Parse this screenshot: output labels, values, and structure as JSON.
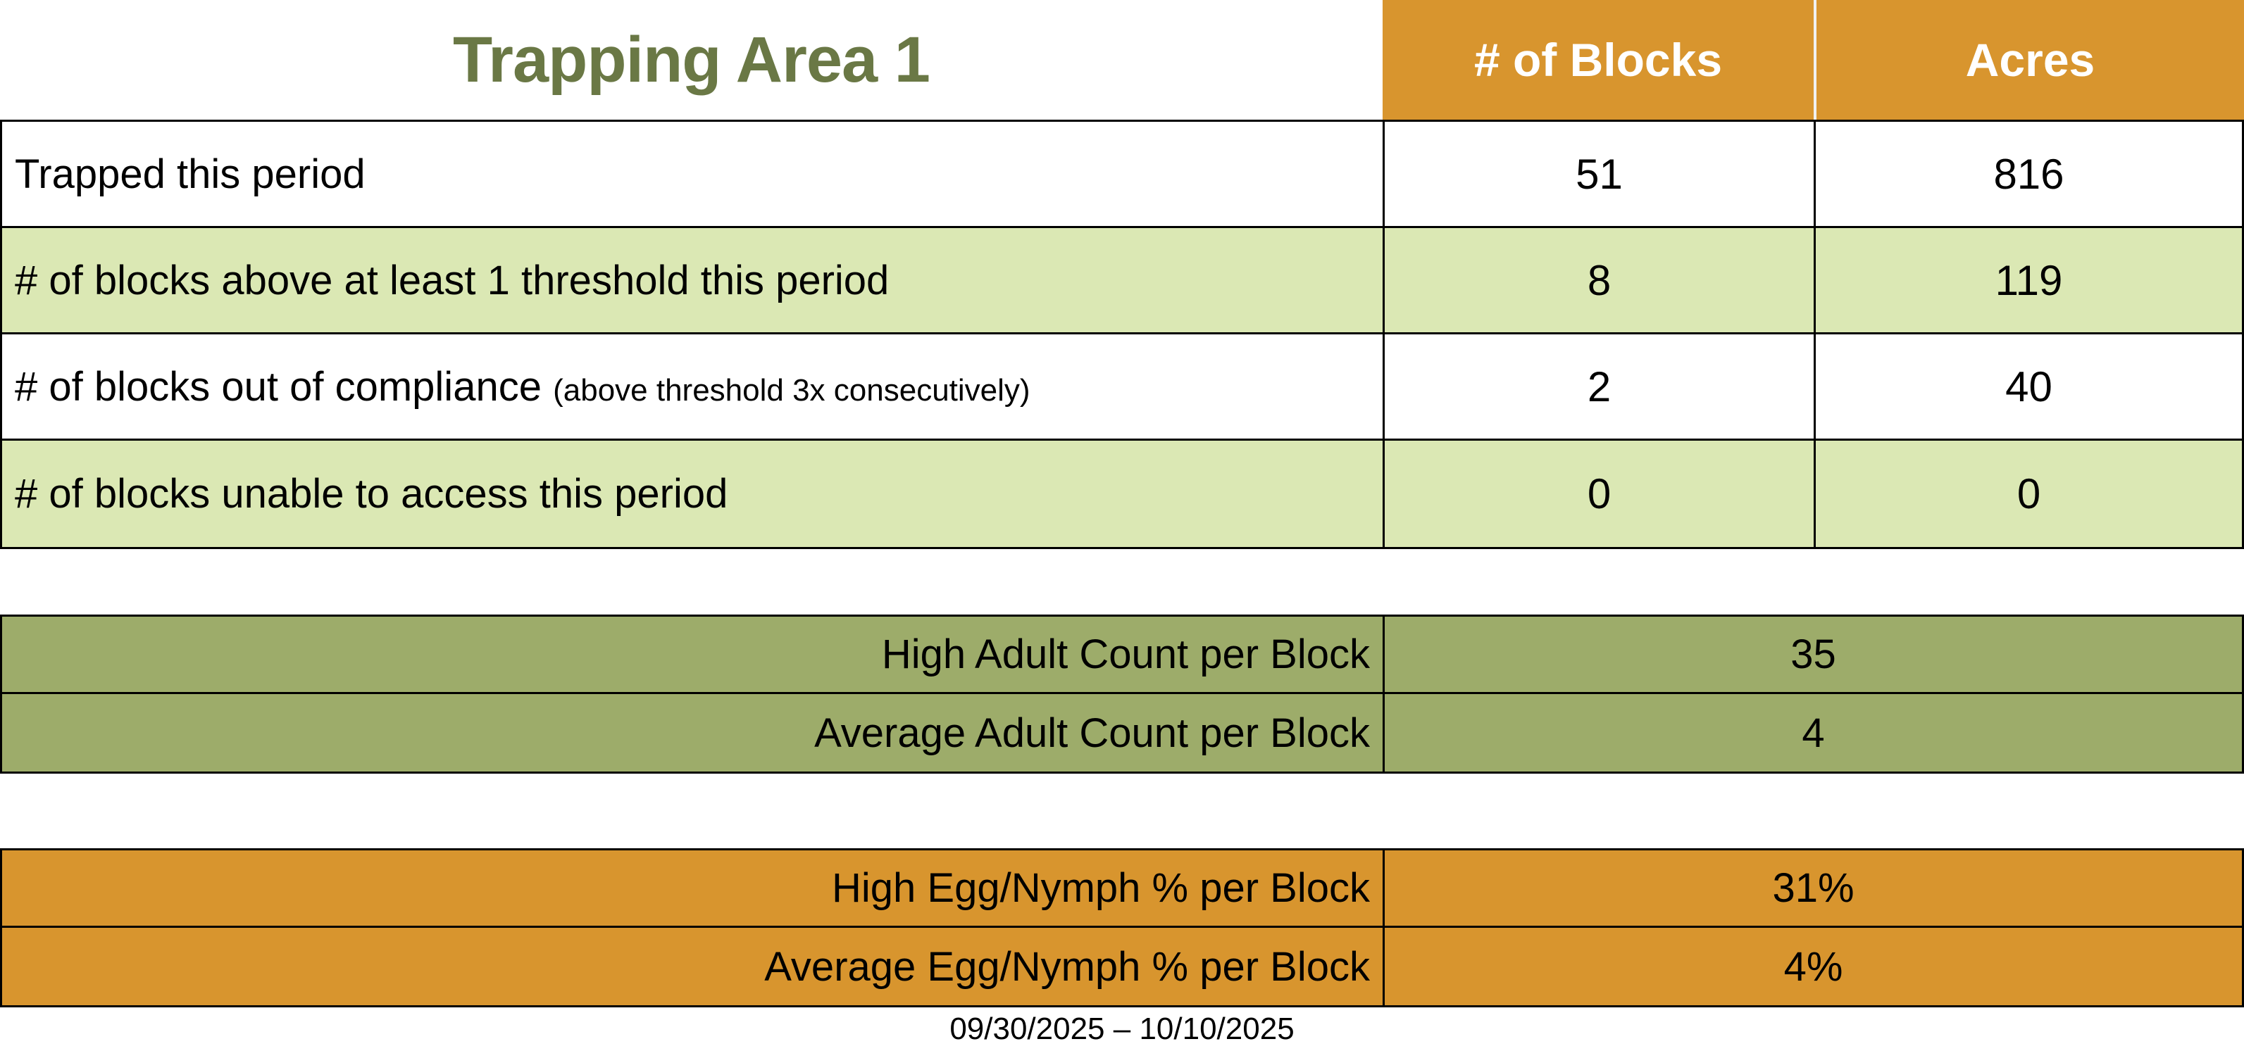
{
  "page": {
    "title": "Trapping Area 1",
    "date_range": "09/30/2025 – 10/10/2025"
  },
  "colors": {
    "title_green": "#6a7845",
    "header_orange": "#d8952e",
    "row_light_green": "#dbe8b4",
    "olive_green": "#9dac6a",
    "border_black": "#000000",
    "header_text_white": "#ffffff"
  },
  "summary_table": {
    "columns": [
      "# of Blocks",
      "Acres"
    ],
    "rows": [
      {
        "label": "Trapped this period",
        "note": "",
        "blocks": "51",
        "acres": "816"
      },
      {
        "label": "# of blocks above at least 1 threshold this period",
        "note": "",
        "blocks": "8",
        "acres": "119"
      },
      {
        "label": "# of blocks out of compliance ",
        "note": "(above threshold 3x consecutively)",
        "blocks": "2",
        "acres": "40"
      },
      {
        "label": "# of blocks unable to access this period",
        "note": "",
        "blocks": "0",
        "acres": "0"
      }
    ]
  },
  "adult_counts": {
    "rows": [
      {
        "label": "High Adult Count per Block",
        "value": "35"
      },
      {
        "label": "Average Adult Count per Block",
        "value": "4"
      }
    ]
  },
  "egg_nymph": {
    "rows": [
      {
        "label": "High Egg/Nymph % per Block",
        "value": "31%"
      },
      {
        "label": "Average Egg/Nymph % per Block",
        "value": "4%"
      }
    ]
  }
}
